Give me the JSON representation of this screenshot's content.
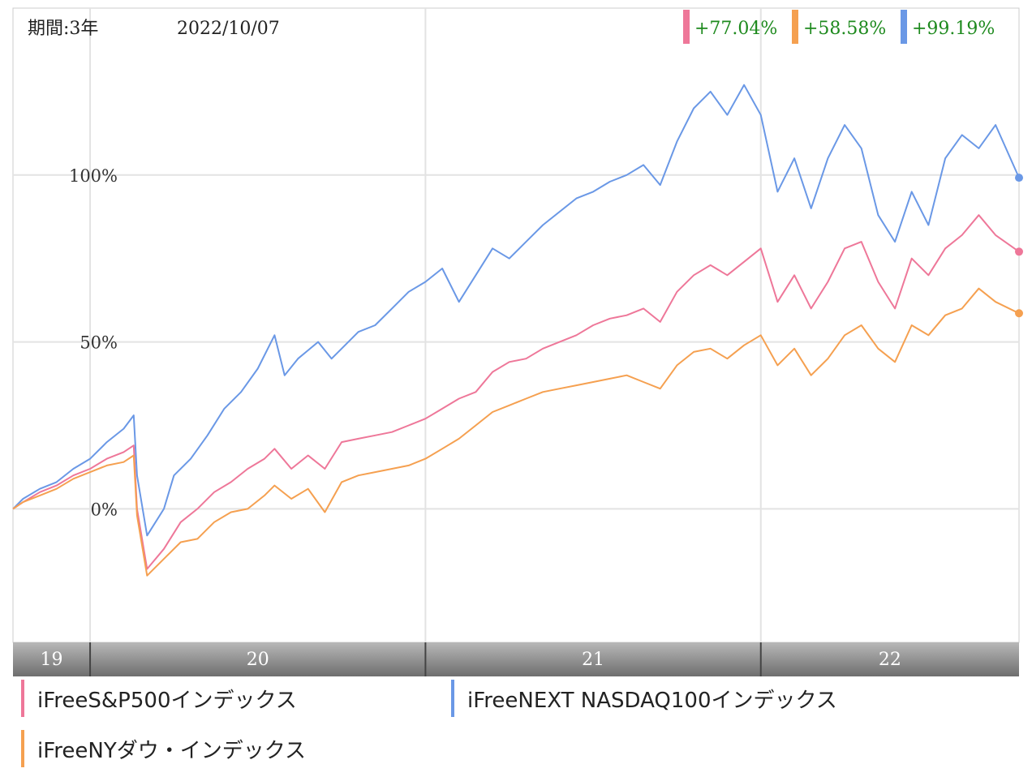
{
  "header": {
    "period_label": "期間:3年",
    "date_label": "2022/10/07",
    "returns": [
      {
        "text": "+77.04%",
        "color": "#ee7799"
      },
      {
        "text": "+58.58%",
        "color": "#f5a050"
      },
      {
        "text": "+99.19%",
        "color": "#6a98e6"
      }
    ]
  },
  "legend": [
    {
      "label": "iFreeS&P500インデックス",
      "color": "#ee7799"
    },
    {
      "label": "iFreeNEXT NASDAQ100インデックス",
      "color": "#6a98e6"
    },
    {
      "label": "iFreeNYダウ・インデックス",
      "color": "#f5a050"
    }
  ],
  "chart_data": {
    "type": "line",
    "title": "",
    "xlabel": "",
    "ylabel": "",
    "x_range": [
      2019.77,
      2022.77
    ],
    "ylim": [
      -40,
      150
    ],
    "yticks": [
      {
        "value": 0,
        "label": "0%"
      },
      {
        "value": 50,
        "label": "50%"
      },
      {
        "value": 100,
        "label": "100%"
      }
    ],
    "xticks": [
      {
        "label": "19",
        "start": 2019.77,
        "end": 2020.0
      },
      {
        "label": "20",
        "start": 2020.0,
        "end": 2021.0
      },
      {
        "label": "21",
        "start": 2021.0,
        "end": 2022.0
      },
      {
        "label": "22",
        "start": 2022.0,
        "end": 2022.77
      }
    ],
    "grid": true,
    "series": [
      {
        "name": "iFreeNEXT NASDAQ100インデックス",
        "color": "#6a98e6",
        "final_label": "+99.19%",
        "points": [
          [
            2019.77,
            0
          ],
          [
            2019.8,
            3
          ],
          [
            2019.85,
            6
          ],
          [
            2019.9,
            8
          ],
          [
            2019.95,
            12
          ],
          [
            2020.0,
            15
          ],
          [
            2020.05,
            20
          ],
          [
            2020.1,
            24
          ],
          [
            2020.13,
            28
          ],
          [
            2020.14,
            10
          ],
          [
            2020.17,
            -8
          ],
          [
            2020.22,
            0
          ],
          [
            2020.25,
            10
          ],
          [
            2020.3,
            15
          ],
          [
            2020.35,
            22
          ],
          [
            2020.4,
            30
          ],
          [
            2020.45,
            35
          ],
          [
            2020.5,
            42
          ],
          [
            2020.55,
            52
          ],
          [
            2020.58,
            40
          ],
          [
            2020.62,
            45
          ],
          [
            2020.68,
            50
          ],
          [
            2020.72,
            45
          ],
          [
            2020.75,
            48
          ],
          [
            2020.8,
            53
          ],
          [
            2020.85,
            55
          ],
          [
            2020.9,
            60
          ],
          [
            2020.95,
            65
          ],
          [
            2021.0,
            68
          ],
          [
            2021.05,
            72
          ],
          [
            2021.1,
            62
          ],
          [
            2021.15,
            70
          ],
          [
            2021.2,
            78
          ],
          [
            2021.25,
            75
          ],
          [
            2021.3,
            80
          ],
          [
            2021.35,
            85
          ],
          [
            2021.45,
            93
          ],
          [
            2021.5,
            95
          ],
          [
            2021.55,
            98
          ],
          [
            2021.6,
            100
          ],
          [
            2021.65,
            103
          ],
          [
            2021.7,
            97
          ],
          [
            2021.75,
            110
          ],
          [
            2021.8,
            120
          ],
          [
            2021.85,
            125
          ],
          [
            2021.9,
            118
          ],
          [
            2021.95,
            127
          ],
          [
            2022.0,
            118
          ],
          [
            2022.05,
            95
          ],
          [
            2022.1,
            105
          ],
          [
            2022.15,
            90
          ],
          [
            2022.2,
            105
          ],
          [
            2022.25,
            115
          ],
          [
            2022.3,
            108
          ],
          [
            2022.35,
            88
          ],
          [
            2022.4,
            80
          ],
          [
            2022.45,
            95
          ],
          [
            2022.5,
            85
          ],
          [
            2022.55,
            105
          ],
          [
            2022.6,
            112
          ],
          [
            2022.65,
            108
          ],
          [
            2022.7,
            115
          ],
          [
            2022.77,
            99.19
          ]
        ]
      },
      {
        "name": "iFreeS&P500インデックス",
        "color": "#ee7799",
        "final_label": "+77.04%",
        "points": [
          [
            2019.77,
            0
          ],
          [
            2019.8,
            2
          ],
          [
            2019.85,
            5
          ],
          [
            2019.9,
            7
          ],
          [
            2019.95,
            10
          ],
          [
            2020.0,
            12
          ],
          [
            2020.05,
            15
          ],
          [
            2020.1,
            17
          ],
          [
            2020.13,
            19
          ],
          [
            2020.14,
            0
          ],
          [
            2020.17,
            -18
          ],
          [
            2020.22,
            -12
          ],
          [
            2020.27,
            -4
          ],
          [
            2020.32,
            0
          ],
          [
            2020.37,
            5
          ],
          [
            2020.42,
            8
          ],
          [
            2020.47,
            12
          ],
          [
            2020.52,
            15
          ],
          [
            2020.55,
            18
          ],
          [
            2020.6,
            12
          ],
          [
            2020.65,
            16
          ],
          [
            2020.7,
            12
          ],
          [
            2020.75,
            20
          ],
          [
            2020.8,
            21
          ],
          [
            2020.85,
            22
          ],
          [
            2020.9,
            23
          ],
          [
            2020.95,
            25
          ],
          [
            2021.0,
            27
          ],
          [
            2021.05,
            30
          ],
          [
            2021.1,
            33
          ],
          [
            2021.15,
            35
          ],
          [
            2021.2,
            41
          ],
          [
            2021.25,
            44
          ],
          [
            2021.3,
            45
          ],
          [
            2021.35,
            48
          ],
          [
            2021.4,
            50
          ],
          [
            2021.45,
            52
          ],
          [
            2021.5,
            55
          ],
          [
            2021.55,
            57
          ],
          [
            2021.6,
            58
          ],
          [
            2021.65,
            60
          ],
          [
            2021.7,
            56
          ],
          [
            2021.75,
            65
          ],
          [
            2021.8,
            70
          ],
          [
            2021.85,
            73
          ],
          [
            2021.9,
            70
          ],
          [
            2021.95,
            74
          ],
          [
            2022.0,
            78
          ],
          [
            2022.05,
            62
          ],
          [
            2022.1,
            70
          ],
          [
            2022.15,
            60
          ],
          [
            2022.2,
            68
          ],
          [
            2022.25,
            78
          ],
          [
            2022.3,
            80
          ],
          [
            2022.35,
            68
          ],
          [
            2022.4,
            60
          ],
          [
            2022.45,
            75
          ],
          [
            2022.5,
            70
          ],
          [
            2022.55,
            78
          ],
          [
            2022.6,
            82
          ],
          [
            2022.65,
            88
          ],
          [
            2022.7,
            82
          ],
          [
            2022.77,
            77.04
          ]
        ]
      },
      {
        "name": "iFreeNYダウ・インデックス",
        "color": "#f5a050",
        "final_label": "+58.58%",
        "points": [
          [
            2019.77,
            0
          ],
          [
            2019.8,
            2
          ],
          [
            2019.85,
            4
          ],
          [
            2019.9,
            6
          ],
          [
            2019.95,
            9
          ],
          [
            2020.0,
            11
          ],
          [
            2020.05,
            13
          ],
          [
            2020.1,
            14
          ],
          [
            2020.13,
            16
          ],
          [
            2020.14,
            -2
          ],
          [
            2020.17,
            -20
          ],
          [
            2020.22,
            -15
          ],
          [
            2020.27,
            -10
          ],
          [
            2020.32,
            -9
          ],
          [
            2020.37,
            -4
          ],
          [
            2020.42,
            -1
          ],
          [
            2020.47,
            0
          ],
          [
            2020.52,
            4
          ],
          [
            2020.55,
            7
          ],
          [
            2020.6,
            3
          ],
          [
            2020.65,
            6
          ],
          [
            2020.7,
            -1
          ],
          [
            2020.75,
            8
          ],
          [
            2020.8,
            10
          ],
          [
            2020.85,
            11
          ],
          [
            2020.9,
            12
          ],
          [
            2020.95,
            13
          ],
          [
            2021.0,
            15
          ],
          [
            2021.05,
            18
          ],
          [
            2021.1,
            21
          ],
          [
            2021.15,
            25
          ],
          [
            2021.2,
            29
          ],
          [
            2021.25,
            31
          ],
          [
            2021.3,
            33
          ],
          [
            2021.35,
            35
          ],
          [
            2021.4,
            36
          ],
          [
            2021.45,
            37
          ],
          [
            2021.5,
            38
          ],
          [
            2021.55,
            39
          ],
          [
            2021.6,
            40
          ],
          [
            2021.65,
            38
          ],
          [
            2021.7,
            36
          ],
          [
            2021.75,
            43
          ],
          [
            2021.8,
            47
          ],
          [
            2021.85,
            48
          ],
          [
            2021.9,
            45
          ],
          [
            2021.95,
            49
          ],
          [
            2022.0,
            52
          ],
          [
            2022.05,
            43
          ],
          [
            2022.1,
            48
          ],
          [
            2022.15,
            40
          ],
          [
            2022.2,
            45
          ],
          [
            2022.25,
            52
          ],
          [
            2022.3,
            55
          ],
          [
            2022.35,
            48
          ],
          [
            2022.4,
            44
          ],
          [
            2022.45,
            55
          ],
          [
            2022.5,
            52
          ],
          [
            2022.55,
            58
          ],
          [
            2022.6,
            60
          ],
          [
            2022.65,
            66
          ],
          [
            2022.7,
            62
          ],
          [
            2022.77,
            58.58
          ]
        ]
      }
    ]
  }
}
